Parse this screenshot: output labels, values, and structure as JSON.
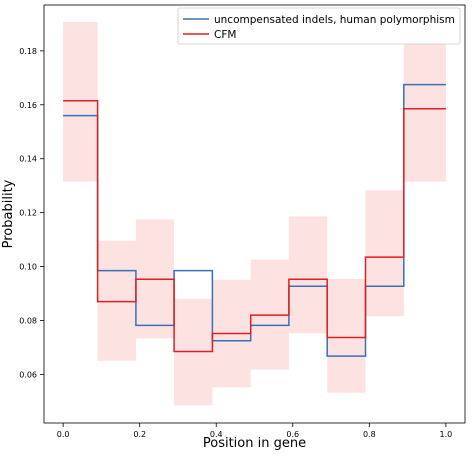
{
  "chart_data": {
    "type": "line",
    "xlabel": "Position in gene",
    "ylabel": "Probability",
    "xlim": [
      -0.05,
      1.05
    ],
    "ylim": [
      0.042,
      0.197
    ],
    "xticks": [
      0.0,
      0.2,
      0.4,
      0.6,
      0.8,
      1.0
    ],
    "xtick_labels": [
      "0.0",
      "0.2",
      "0.4",
      "0.6",
      "0.8",
      "1.0"
    ],
    "yticks": [
      0.06,
      0.08,
      0.1,
      0.12,
      0.14,
      0.16,
      0.18
    ],
    "ytick_labels": [
      "0.06",
      "0.08",
      "0.10",
      "0.12",
      "0.14",
      "0.16",
      "0.18"
    ],
    "legend_position": "top-right",
    "grid": false,
    "bins": [
      [
        0.0,
        0.09
      ],
      [
        0.09,
        0.19
      ],
      [
        0.19,
        0.29
      ],
      [
        0.29,
        0.39
      ],
      [
        0.39,
        0.49
      ],
      [
        0.49,
        0.59
      ],
      [
        0.59,
        0.69
      ],
      [
        0.69,
        0.79
      ],
      [
        0.79,
        0.89
      ],
      [
        0.89,
        1.0
      ]
    ],
    "series": [
      {
        "name": "uncompensated indels, human polymorphism",
        "color": "#3b6fb6",
        "values": [
          0.156,
          0.0985,
          0.0782,
          0.0985,
          0.0725,
          0.0782,
          0.0927,
          0.0668,
          0.0927,
          0.1675
        ]
      },
      {
        "name": "CFM",
        "color": "#e02020",
        "values": [
          0.1615,
          0.087,
          0.0953,
          0.0685,
          0.0752,
          0.082,
          0.0953,
          0.0737,
          0.1035,
          0.1585
        ]
      }
    ],
    "confidence_band": {
      "color": "#fde2e2",
      "lower": [
        0.1315,
        0.0651,
        0.0734,
        0.0485,
        0.0552,
        0.0618,
        0.0753,
        0.0532,
        0.0816,
        0.1315
      ],
      "upper": [
        0.1907,
        0.1096,
        0.1175,
        0.0881,
        0.0951,
        0.1026,
        0.1186,
        0.0954,
        0.1283,
        0.1893
      ]
    }
  }
}
